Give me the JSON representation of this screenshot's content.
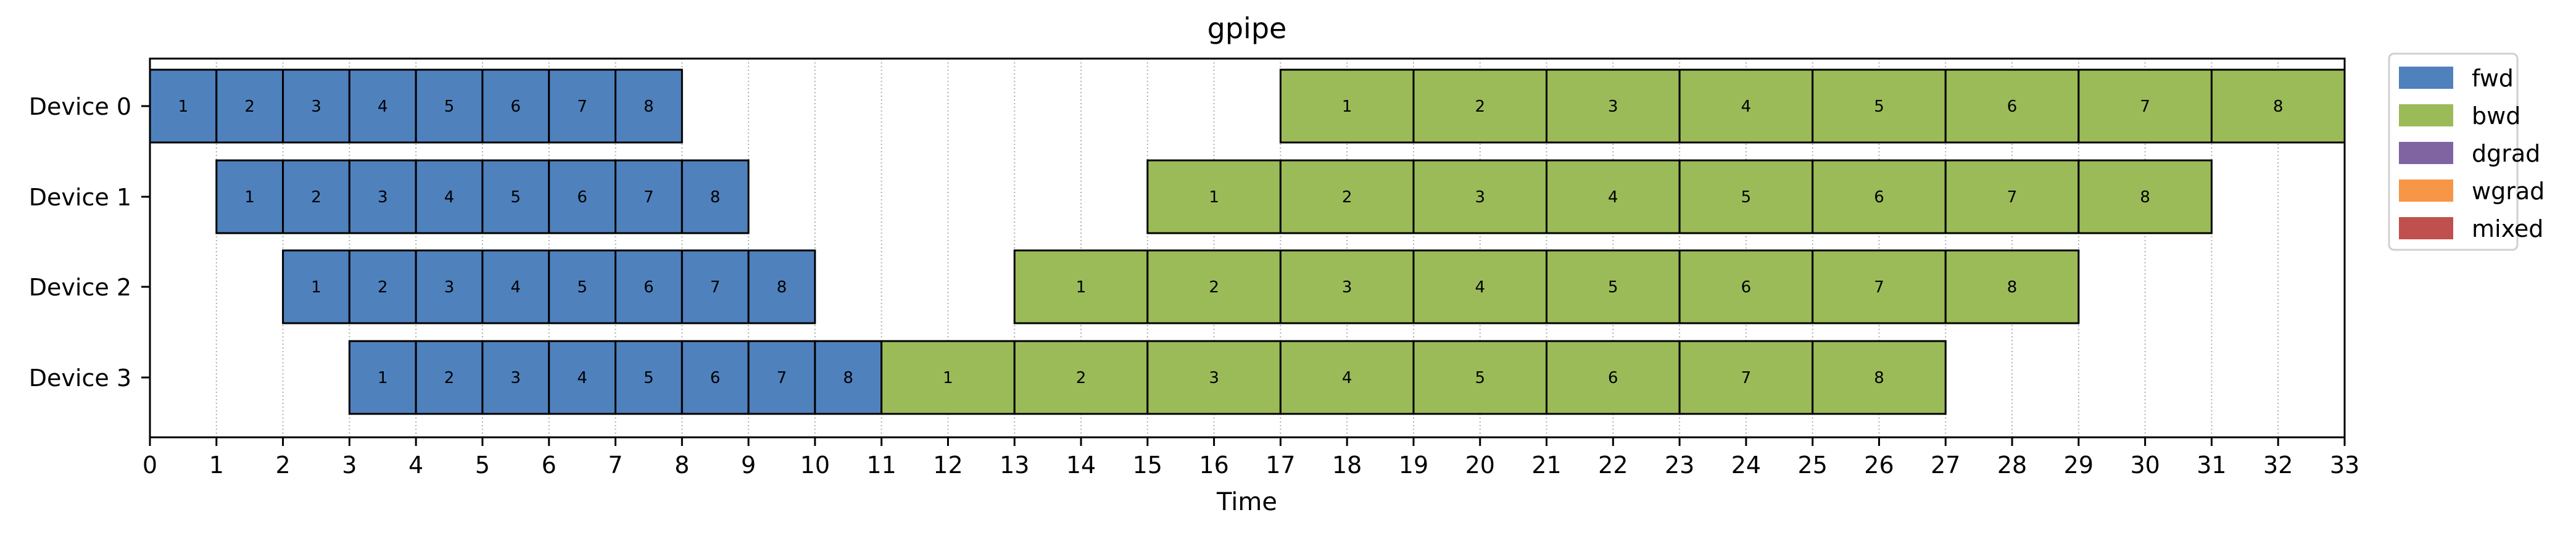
{
  "chart_data": {
    "type": "gantt",
    "title": "gpipe",
    "xlabel": "Time",
    "ylabel": "",
    "xlim": [
      0,
      33
    ],
    "x_ticks": [
      0,
      1,
      2,
      3,
      4,
      5,
      6,
      7,
      8,
      9,
      10,
      11,
      12,
      13,
      14,
      15,
      16,
      17,
      18,
      19,
      20,
      21,
      22,
      23,
      24,
      25,
      26,
      27,
      28,
      29,
      30,
      31,
      32,
      33
    ],
    "grid": "vertical dotted at every integer",
    "legend_placement": "outside right, top",
    "categories": [
      "Device 0",
      "Device 1",
      "Device 2",
      "Device 3"
    ],
    "legend": [
      {
        "name": "fwd",
        "color": "#4f81bd"
      },
      {
        "name": "bwd",
        "color": "#9bbb59"
      },
      {
        "name": "dgrad",
        "color": "#8064a2"
      },
      {
        "name": "wgrad",
        "color": "#f79646"
      },
      {
        "name": "mixed",
        "color": "#c0504d"
      }
    ],
    "tasks": [
      {
        "device": 0,
        "kind": "fwd",
        "label": "1",
        "start": 0,
        "end": 1
      },
      {
        "device": 0,
        "kind": "fwd",
        "label": "2",
        "start": 1,
        "end": 2
      },
      {
        "device": 0,
        "kind": "fwd",
        "label": "3",
        "start": 2,
        "end": 3
      },
      {
        "device": 0,
        "kind": "fwd",
        "label": "4",
        "start": 3,
        "end": 4
      },
      {
        "device": 0,
        "kind": "fwd",
        "label": "5",
        "start": 4,
        "end": 5
      },
      {
        "device": 0,
        "kind": "fwd",
        "label": "6",
        "start": 5,
        "end": 6
      },
      {
        "device": 0,
        "kind": "fwd",
        "label": "7",
        "start": 6,
        "end": 7
      },
      {
        "device": 0,
        "kind": "fwd",
        "label": "8",
        "start": 7,
        "end": 8
      },
      {
        "device": 0,
        "kind": "bwd",
        "label": "1",
        "start": 17,
        "end": 19
      },
      {
        "device": 0,
        "kind": "bwd",
        "label": "2",
        "start": 19,
        "end": 21
      },
      {
        "device": 0,
        "kind": "bwd",
        "label": "3",
        "start": 21,
        "end": 23
      },
      {
        "device": 0,
        "kind": "bwd",
        "label": "4",
        "start": 23,
        "end": 25
      },
      {
        "device": 0,
        "kind": "bwd",
        "label": "5",
        "start": 25,
        "end": 27
      },
      {
        "device": 0,
        "kind": "bwd",
        "label": "6",
        "start": 27,
        "end": 29
      },
      {
        "device": 0,
        "kind": "bwd",
        "label": "7",
        "start": 29,
        "end": 31
      },
      {
        "device": 0,
        "kind": "bwd",
        "label": "8",
        "start": 31,
        "end": 33
      },
      {
        "device": 1,
        "kind": "fwd",
        "label": "1",
        "start": 1,
        "end": 2
      },
      {
        "device": 1,
        "kind": "fwd",
        "label": "2",
        "start": 2,
        "end": 3
      },
      {
        "device": 1,
        "kind": "fwd",
        "label": "3",
        "start": 3,
        "end": 4
      },
      {
        "device": 1,
        "kind": "fwd",
        "label": "4",
        "start": 4,
        "end": 5
      },
      {
        "device": 1,
        "kind": "fwd",
        "label": "5",
        "start": 5,
        "end": 6
      },
      {
        "device": 1,
        "kind": "fwd",
        "label": "6",
        "start": 6,
        "end": 7
      },
      {
        "device": 1,
        "kind": "fwd",
        "label": "7",
        "start": 7,
        "end": 8
      },
      {
        "device": 1,
        "kind": "fwd",
        "label": "8",
        "start": 8,
        "end": 9
      },
      {
        "device": 1,
        "kind": "bwd",
        "label": "1",
        "start": 15,
        "end": 17
      },
      {
        "device": 1,
        "kind": "bwd",
        "label": "2",
        "start": 17,
        "end": 19
      },
      {
        "device": 1,
        "kind": "bwd",
        "label": "3",
        "start": 19,
        "end": 21
      },
      {
        "device": 1,
        "kind": "bwd",
        "label": "4",
        "start": 21,
        "end": 23
      },
      {
        "device": 1,
        "kind": "bwd",
        "label": "5",
        "start": 23,
        "end": 25
      },
      {
        "device": 1,
        "kind": "bwd",
        "label": "6",
        "start": 25,
        "end": 27
      },
      {
        "device": 1,
        "kind": "bwd",
        "label": "7",
        "start": 27,
        "end": 29
      },
      {
        "device": 1,
        "kind": "bwd",
        "label": "8",
        "start": 29,
        "end": 31
      },
      {
        "device": 2,
        "kind": "fwd",
        "label": "1",
        "start": 2,
        "end": 3
      },
      {
        "device": 2,
        "kind": "fwd",
        "label": "2",
        "start": 3,
        "end": 4
      },
      {
        "device": 2,
        "kind": "fwd",
        "label": "3",
        "start": 4,
        "end": 5
      },
      {
        "device": 2,
        "kind": "fwd",
        "label": "4",
        "start": 5,
        "end": 6
      },
      {
        "device": 2,
        "kind": "fwd",
        "label": "5",
        "start": 6,
        "end": 7
      },
      {
        "device": 2,
        "kind": "fwd",
        "label": "6",
        "start": 7,
        "end": 8
      },
      {
        "device": 2,
        "kind": "fwd",
        "label": "7",
        "start": 8,
        "end": 9
      },
      {
        "device": 2,
        "kind": "fwd",
        "label": "8",
        "start": 9,
        "end": 10
      },
      {
        "device": 2,
        "kind": "bwd",
        "label": "1",
        "start": 13,
        "end": 15
      },
      {
        "device": 2,
        "kind": "bwd",
        "label": "2",
        "start": 15,
        "end": 17
      },
      {
        "device": 2,
        "kind": "bwd",
        "label": "3",
        "start": 17,
        "end": 19
      },
      {
        "device": 2,
        "kind": "bwd",
        "label": "4",
        "start": 19,
        "end": 21
      },
      {
        "device": 2,
        "kind": "bwd",
        "label": "5",
        "start": 21,
        "end": 23
      },
      {
        "device": 2,
        "kind": "bwd",
        "label": "6",
        "start": 23,
        "end": 25
      },
      {
        "device": 2,
        "kind": "bwd",
        "label": "7",
        "start": 25,
        "end": 27
      },
      {
        "device": 2,
        "kind": "bwd",
        "label": "8",
        "start": 27,
        "end": 29
      },
      {
        "device": 3,
        "kind": "fwd",
        "label": "1",
        "start": 3,
        "end": 4
      },
      {
        "device": 3,
        "kind": "fwd",
        "label": "2",
        "start": 4,
        "end": 5
      },
      {
        "device": 3,
        "kind": "fwd",
        "label": "3",
        "start": 5,
        "end": 6
      },
      {
        "device": 3,
        "kind": "fwd",
        "label": "4",
        "start": 6,
        "end": 7
      },
      {
        "device": 3,
        "kind": "fwd",
        "label": "5",
        "start": 7,
        "end": 8
      },
      {
        "device": 3,
        "kind": "fwd",
        "label": "6",
        "start": 8,
        "end": 9
      },
      {
        "device": 3,
        "kind": "fwd",
        "label": "7",
        "start": 9,
        "end": 10
      },
      {
        "device": 3,
        "kind": "fwd",
        "label": "8",
        "start": 10,
        "end": 11
      },
      {
        "device": 3,
        "kind": "bwd",
        "label": "1",
        "start": 11,
        "end": 13
      },
      {
        "device": 3,
        "kind": "bwd",
        "label": "2",
        "start": 13,
        "end": 15
      },
      {
        "device": 3,
        "kind": "bwd",
        "label": "3",
        "start": 15,
        "end": 17
      },
      {
        "device": 3,
        "kind": "bwd",
        "label": "4",
        "start": 17,
        "end": 19
      },
      {
        "device": 3,
        "kind": "bwd",
        "label": "5",
        "start": 19,
        "end": 21
      },
      {
        "device": 3,
        "kind": "bwd",
        "label": "6",
        "start": 21,
        "end": 23
      },
      {
        "device": 3,
        "kind": "bwd",
        "label": "7",
        "start": 23,
        "end": 25
      },
      {
        "device": 3,
        "kind": "bwd",
        "label": "8",
        "start": 25,
        "end": 27
      }
    ]
  }
}
